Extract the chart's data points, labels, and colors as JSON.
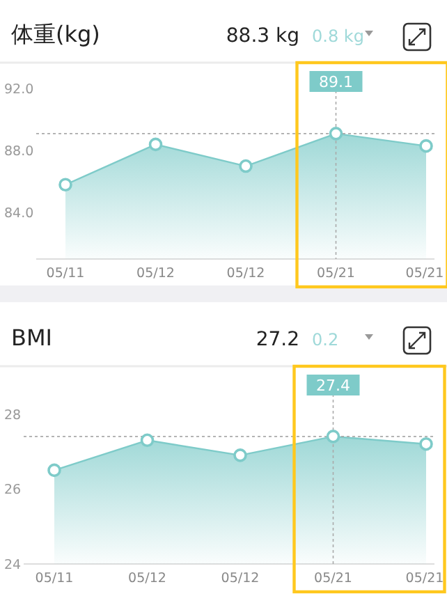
{
  "chart_data": [
    {
      "type": "area",
      "title": "体重(kg)",
      "categories": [
        "05/11",
        "05/12",
        "05/12",
        "05/21",
        "05/21"
      ],
      "values": [
        85.8,
        88.4,
        87.0,
        89.1,
        88.3
      ],
      "color": "#7ecbc9",
      "marker": "circle",
      "ylim": [
        81,
        93.5
      ],
      "yticks": [
        {
          "value": 92,
          "label": "92.0"
        },
        {
          "value": 88,
          "label": "88.0"
        },
        {
          "value": 84,
          "label": "84.0"
        }
      ],
      "ref_lines": [
        {
          "axis": "y",
          "value": 89.1,
          "line_style": "dotted"
        }
      ],
      "annotations": [
        "88.3 kg",
        "0.8 kg",
        {
          "text": "89.1",
          "x": "05/21",
          "y": 89.1
        }
      ]
    },
    {
      "type": "area",
      "title": "BMI",
      "categories": [
        "05/11",
        "05/12",
        "05/12",
        "05/21",
        "05/21"
      ],
      "values": [
        26.5,
        27.3,
        26.9,
        27.4,
        27.2
      ],
      "color": "#7ecbc9",
      "marker": "circle",
      "ylim": [
        24,
        29.2
      ],
      "yticks": [
        24,
        26,
        28
      ],
      "ref_lines": [
        {
          "axis": "y",
          "value": 27.4,
          "line_style": "dotted"
        }
      ],
      "annotations": [
        "27.2",
        "0.2",
        {
          "text": "27.4",
          "x": "05/21",
          "y": 27.4
        }
      ]
    }
  ]
}
